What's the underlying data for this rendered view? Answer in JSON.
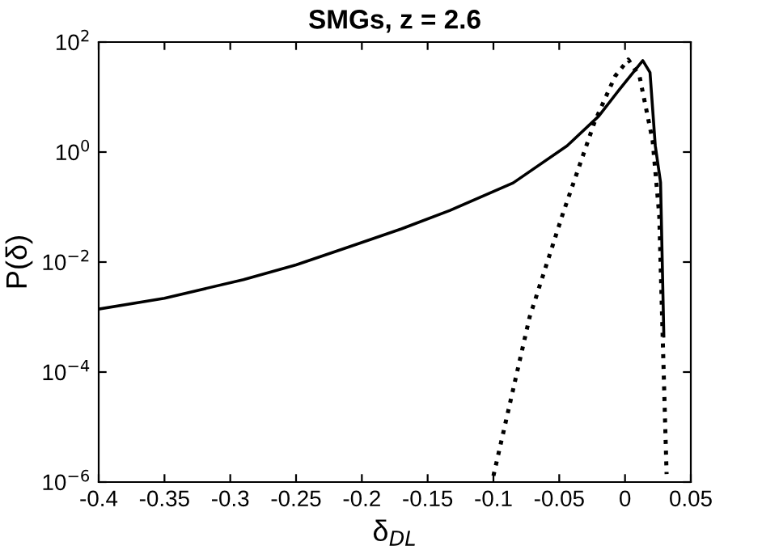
{
  "chart_data": {
    "type": "line",
    "title": "SMGs, z = 2.6",
    "xlabel": "δ$_{DL}$",
    "ylabel": "P(δ)",
    "log": "y",
    "grid": false,
    "legend": false,
    "xlim": [
      -0.4,
      0.05
    ],
    "xticks": [
      -0.4,
      -0.35,
      -0.3,
      -0.25,
      -0.2,
      -0.15,
      -0.1,
      -0.05,
      0,
      0.05
    ],
    "ylim": [
      1e-06,
      100
    ],
    "yticks": [
      {
        "value": 1e-06,
        "label": "10$^{−6}$"
      },
      {
        "value": 0.0001,
        "label": "10$^{−4}$"
      },
      {
        "value": 0.01,
        "label": "10$^{−2}$"
      },
      {
        "value": 1,
        "label": "10$^{0}$"
      },
      {
        "value": 100,
        "label": "10$^{2}$"
      }
    ],
    "series": [
      {
        "color": "#000000",
        "line_style": "solid",
        "x": [
          -0.4,
          -0.35,
          -0.29,
          -0.25,
          -0.208,
          -0.17,
          -0.133,
          -0.085,
          -0.044,
          -0.02,
          -0.004,
          0.0135,
          0.019,
          0.023,
          0.027,
          0.0295
        ],
        "values": [
          0.0014,
          0.0022,
          0.0048,
          0.0089,
          0.0195,
          0.04,
          0.087,
          0.275,
          1.3,
          4.5,
          14,
          46,
          28,
          1.3,
          0.28,
          0.00045
        ]
      },
      {
        "color": "#000000",
        "line_style": "dotted",
        "x": [
          -0.1,
          -0.0725,
          -0.047,
          -0.023,
          -0.0075,
          0.0025,
          0.011,
          0.021,
          0.026,
          0.0295,
          0.0316
        ],
        "values": [
          1.3e-06,
          0.001,
          0.079,
          3.6,
          24,
          48,
          24,
          1.6,
          0.071,
          7.9e-05,
          1.4e-06
        ]
      }
    ]
  }
}
